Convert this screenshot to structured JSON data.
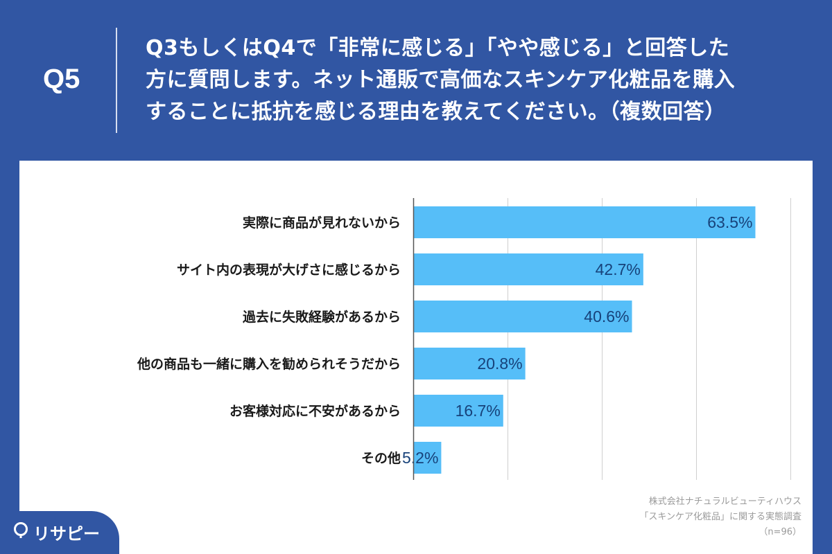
{
  "header": {
    "q_number": "Q5",
    "question_lines": [
      "Q3もしくはQ4で「非常に感じる」「やや感じる」と回答した",
      "方に質問します。ネット通販で高価なスキンケア化粧品を購入",
      "することに抵抗を感じる理由を教えてください。（複数回答）"
    ]
  },
  "chart_data": {
    "type": "bar",
    "orientation": "horizontal",
    "categories": [
      "実際に商品が見れないから",
      "サイト内の表現が大げさに感じるから",
      "過去に失敗経験があるから",
      "他の商品も一緒に購入を勧められそうだから",
      "お客様対応に不安があるから",
      "その他"
    ],
    "values": [
      63.5,
      42.7,
      40.6,
      20.8,
      16.7,
      5.2
    ],
    "value_labels": [
      "63.5%",
      "42.7%",
      "40.6%",
      "20.8%",
      "16.7%",
      "5.2%"
    ],
    "xlim": [
      0,
      70
    ],
    "grid": true,
    "bar_color": "#56bef8"
  },
  "source": {
    "line1": "株式会社ナチュラルビューティハウス",
    "line2": "「スキンケア化粧品」に関する実態調査",
    "line3": "（n=96）"
  },
  "logo": {
    "text": "リサピー",
    "icon": "speech-pin-icon"
  },
  "colors": {
    "background": "#3156a3",
    "bar": "#56bef8",
    "value_text": "#17427a"
  }
}
